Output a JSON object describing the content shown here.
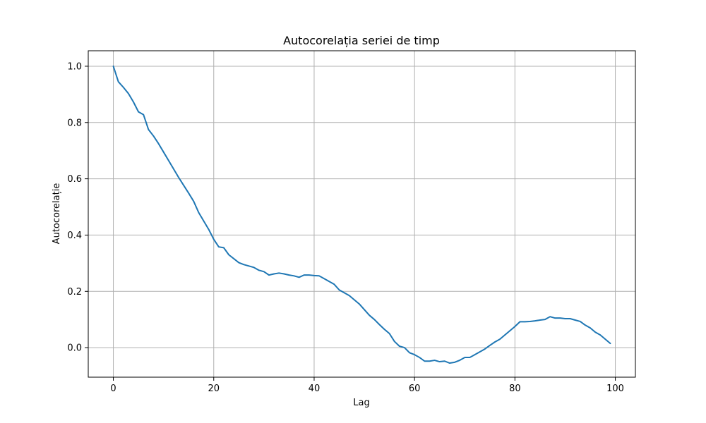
{
  "chart_data": {
    "type": "line",
    "title": "Autocorelația seriei de timp",
    "xlabel": "Lag",
    "ylabel": "Autocorelație",
    "xlim": [
      -5,
      104
    ],
    "ylim": [
      -0.105,
      1.055
    ],
    "x_ticks": [
      0,
      20,
      40,
      60,
      80,
      100
    ],
    "x_tick_labels": [
      "0",
      "20",
      "40",
      "60",
      "80",
      "100"
    ],
    "y_ticks": [
      0.0,
      0.2,
      0.4,
      0.6,
      0.8,
      1.0
    ],
    "y_tick_labels": [
      "0.0",
      "0.2",
      "0.4",
      "0.6",
      "0.8",
      "1.0"
    ],
    "grid": true,
    "series": [
      {
        "color": "#1f77b4",
        "x": [
          0,
          1,
          2,
          3,
          4,
          5,
          6,
          7,
          8,
          9,
          10,
          11,
          12,
          13,
          14,
          15,
          16,
          17,
          18,
          19,
          20,
          21,
          22,
          23,
          24,
          25,
          26,
          27,
          28,
          29,
          30,
          31,
          32,
          33,
          34,
          35,
          36,
          37,
          38,
          39,
          40,
          41,
          42,
          43,
          44,
          45,
          46,
          47,
          48,
          49,
          50,
          51,
          52,
          53,
          54,
          55,
          56,
          57,
          58,
          59,
          60,
          61,
          62,
          63,
          64,
          65,
          66,
          67,
          68,
          69,
          70,
          71,
          72,
          73,
          74,
          75,
          76,
          77,
          78,
          79,
          80,
          81,
          82,
          83,
          84,
          85,
          86,
          87,
          88,
          89,
          90,
          91,
          92,
          93,
          94,
          95,
          96,
          97,
          98,
          99
        ],
        "y": [
          1.0,
          0.945,
          0.925,
          0.903,
          0.873,
          0.838,
          0.828,
          0.775,
          0.752,
          0.725,
          0.695,
          0.665,
          0.635,
          0.605,
          0.577,
          0.549,
          0.52,
          0.48,
          0.45,
          0.42,
          0.385,
          0.358,
          0.355,
          0.33,
          0.316,
          0.302,
          0.295,
          0.29,
          0.285,
          0.275,
          0.27,
          0.258,
          0.262,
          0.265,
          0.262,
          0.258,
          0.255,
          0.25,
          0.258,
          0.258,
          0.256,
          0.255,
          0.245,
          0.235,
          0.225,
          0.205,
          0.195,
          0.185,
          0.17,
          0.155,
          0.135,
          0.115,
          0.1,
          0.082,
          0.065,
          0.05,
          0.022,
          0.005,
          0.0,
          -0.018,
          -0.025,
          -0.035,
          -0.048,
          -0.048,
          -0.045,
          -0.05,
          -0.048,
          -0.055,
          -0.052,
          -0.045,
          -0.035,
          -0.035,
          -0.025,
          -0.015,
          -0.005,
          0.008,
          0.02,
          0.03,
          0.045,
          0.06,
          0.075,
          0.092,
          0.092,
          0.093,
          0.095,
          0.098,
          0.1,
          0.11,
          0.105,
          0.105,
          0.103,
          0.103,
          0.098,
          0.093,
          0.08,
          0.07,
          0.055,
          0.045,
          0.03,
          0.015
        ]
      }
    ]
  }
}
